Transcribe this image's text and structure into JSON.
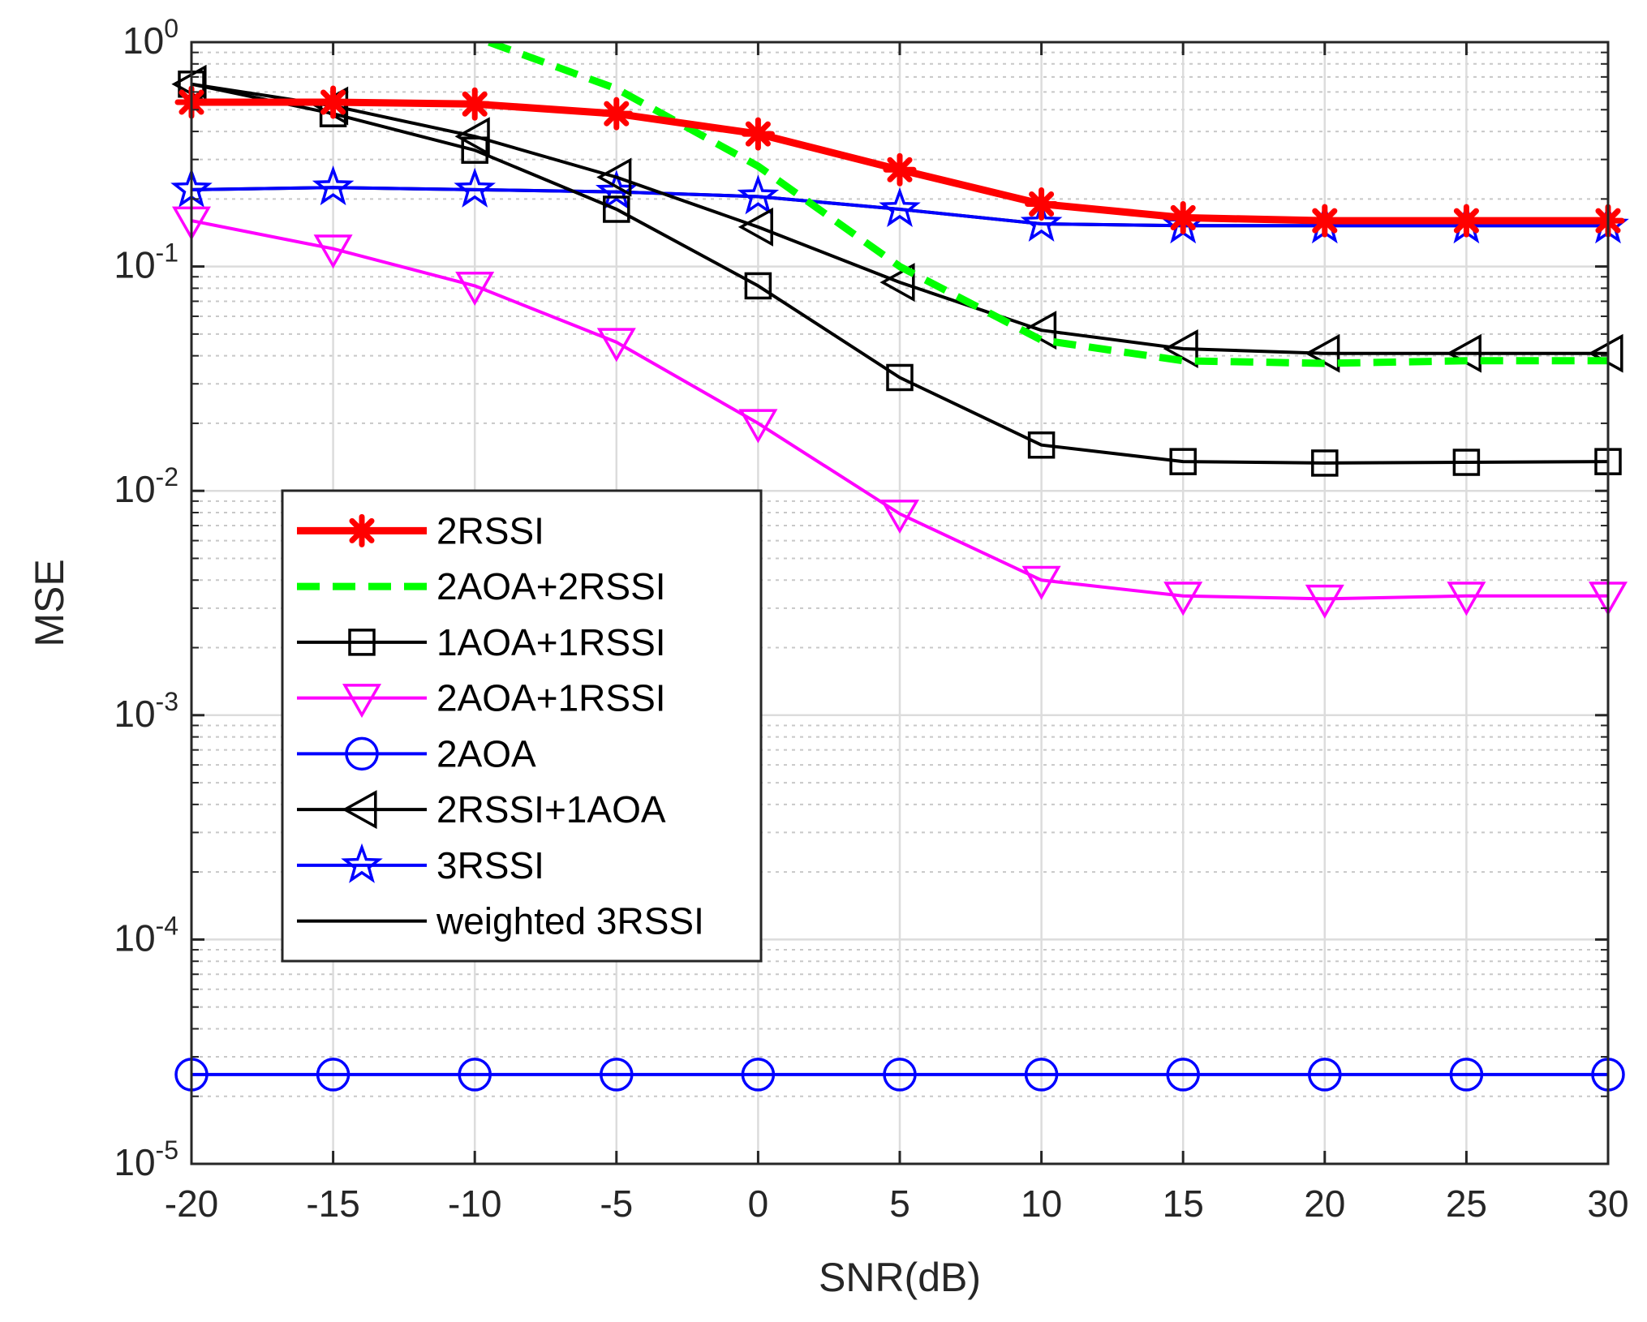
{
  "chart_data": {
    "type": "line",
    "xlabel": "SNR(dB)",
    "ylabel": "MSE",
    "x": [
      -20,
      -15,
      -10,
      -5,
      0,
      5,
      10,
      15,
      20,
      25,
      30
    ],
    "xlim": [
      -20,
      30
    ],
    "ylim": [
      1e-05,
      1
    ],
    "yscale": "log",
    "x_ticks": [
      "-20",
      "-15",
      "-10",
      "-5",
      "0",
      "5",
      "10",
      "15",
      "20",
      "25",
      "30"
    ],
    "y_ticks": [
      {
        "base": "10",
        "exp": "0"
      },
      {
        "base": "10",
        "exp": "-1"
      },
      {
        "base": "10",
        "exp": "-2"
      },
      {
        "base": "10",
        "exp": "-3"
      },
      {
        "base": "10",
        "exp": "-4"
      },
      {
        "base": "10",
        "exp": "-5"
      }
    ],
    "grid": true,
    "legend_position": "lower-left",
    "series": [
      {
        "name": "2RSSI",
        "color": "#ff0000",
        "style": "solid",
        "width": 9,
        "marker": "asterisk",
        "values": [
          0.54,
          0.54,
          0.53,
          0.48,
          0.39,
          0.27,
          0.19,
          0.165,
          0.16,
          0.16,
          0.16
        ]
      },
      {
        "name": "2AOA+2RSSI",
        "color": "#00ff00",
        "style": "dashed",
        "width": 9,
        "marker": "none",
        "x": [
          -9.5,
          -5,
          0,
          5,
          10,
          15,
          20,
          25,
          30
        ],
        "values": [
          1.0,
          0.62,
          0.28,
          0.1,
          0.047,
          0.038,
          0.037,
          0.038,
          0.038
        ]
      },
      {
        "name": "1AOA+1RSSI",
        "color": "#000000",
        "style": "solid",
        "width": 4,
        "marker": "square",
        "values": [
          0.65,
          0.48,
          0.33,
          0.18,
          0.082,
          0.032,
          0.016,
          0.0135,
          0.0133,
          0.0134,
          0.0135
        ]
      },
      {
        "name": "2AOA+1RSSI",
        "color": "#ff00ff",
        "style": "solid",
        "width": 4,
        "marker": "triangle-down",
        "values": [
          0.16,
          0.12,
          0.082,
          0.046,
          0.02,
          0.0079,
          0.004,
          0.0034,
          0.0033,
          0.0034,
          0.0034
        ]
      },
      {
        "name": "2AOA",
        "color": "#0000ff",
        "style": "solid",
        "width": 4,
        "marker": "circle",
        "values": [
          2.5e-05,
          2.5e-05,
          2.5e-05,
          2.5e-05,
          2.5e-05,
          2.5e-05,
          2.5e-05,
          2.5e-05,
          2.5e-05,
          2.5e-05,
          2.5e-05
        ]
      },
      {
        "name": "2RSSI+1AOA",
        "color": "#000000",
        "style": "solid",
        "width": 4,
        "marker": "triangle-left",
        "values": [
          0.65,
          0.52,
          0.38,
          0.25,
          0.15,
          0.085,
          0.052,
          0.043,
          0.041,
          0.041,
          0.041
        ]
      },
      {
        "name": "3RSSI",
        "color": "#0000ff",
        "style": "solid",
        "width": 4,
        "marker": "star",
        "values": [
          0.22,
          0.225,
          0.22,
          0.215,
          0.205,
          0.18,
          0.155,
          0.152,
          0.152,
          0.152,
          0.152
        ]
      },
      {
        "name": "weighted 3RSSI",
        "color": "#000000",
        "style": "solid",
        "width": 4,
        "marker": "none",
        "values": [
          0.22,
          0.225,
          0.22,
          0.215,
          0.205,
          0.18,
          0.155,
          0.152,
          0.152,
          0.152,
          0.152
        ]
      }
    ]
  }
}
